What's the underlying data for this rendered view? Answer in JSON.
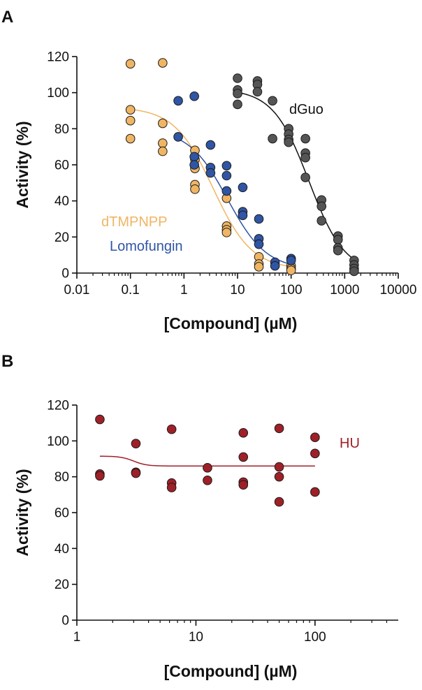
{
  "chart_data": [
    {
      "panel": "A",
      "type": "scatter",
      "xscale": "log",
      "xlim": [
        0.01,
        10000
      ],
      "ylim": [
        0,
        120
      ],
      "xticks": [
        "0.01",
        "0.1",
        "1",
        "10",
        "100",
        "1000",
        "10000"
      ],
      "xtick_values": [
        0.01,
        0.1,
        1,
        10,
        100,
        1000,
        10000
      ],
      "yticks": [
        "0",
        "20",
        "40",
        "60",
        "80",
        "100",
        "120"
      ],
      "ytick_values": [
        0,
        20,
        40,
        60,
        80,
        100,
        120
      ],
      "xlabel": "[Compound] (µM)",
      "ylabel": "Activity (%)",
      "series": [
        {
          "name": "dTMPNPP",
          "color": "#F0B563",
          "line_color": "#F0B563",
          "points": [
            [
              0.1,
              116
            ],
            [
              0.1,
              90.5
            ],
            [
              0.1,
              84.5
            ],
            [
              0.1,
              74.5
            ],
            [
              0.4,
              116.5
            ],
            [
              0.4,
              83
            ],
            [
              0.4,
              72
            ],
            [
              0.4,
              67.5
            ],
            [
              1.6,
              68
            ],
            [
              1.6,
              63
            ],
            [
              1.6,
              58
            ],
            [
              1.6,
              49
            ],
            [
              1.6,
              46.5
            ],
            [
              6.25,
              41.5
            ],
            [
              6.25,
              26
            ],
            [
              6.25,
              24
            ],
            [
              6.25,
              22.5
            ],
            [
              25,
              9
            ],
            [
              25,
              5
            ],
            [
              25,
              3.5
            ],
            [
              100,
              4
            ],
            [
              100,
              2.5
            ],
            [
              100,
              1.5
            ]
          ],
          "fit": {
            "top": 92,
            "bottom": 2,
            "ic50": 3.5,
            "hill": 1.2,
            "xmin": 0.1,
            "xmax": 100
          }
        },
        {
          "name": "Lomofungin",
          "color": "#2F55A4",
          "line_color": "#2F55A4",
          "points": [
            [
              0.78,
              95.5
            ],
            [
              0.78,
              75.5
            ],
            [
              1.56,
              98
            ],
            [
              1.56,
              64.5
            ],
            [
              1.56,
              60
            ],
            [
              3.13,
              71
            ],
            [
              3.13,
              58.5
            ],
            [
              3.13,
              55.5
            ],
            [
              6.25,
              59.5
            ],
            [
              6.25,
              54
            ],
            [
              6.25,
              45.5
            ],
            [
              12.5,
              47.5
            ],
            [
              12.5,
              34
            ],
            [
              12.5,
              32
            ],
            [
              25,
              30
            ],
            [
              25,
              19
            ],
            [
              25,
              16
            ],
            [
              50,
              6
            ],
            [
              50,
              4
            ],
            [
              100,
              8
            ],
            [
              100,
              7
            ]
          ],
          "fit": {
            "top": 80,
            "bottom": 2,
            "ic50": 6.5,
            "hill": 1.2,
            "xmin": 0.78,
            "xmax": 100
          }
        },
        {
          "name": "dGuo",
          "color": "#555555",
          "line_color": "#111111",
          "points": [
            [
              10,
              108
            ],
            [
              10,
              101.5
            ],
            [
              10,
              99.5
            ],
            [
              10,
              93.5
            ],
            [
              23.5,
              106.5
            ],
            [
              23.5,
              104.5
            ],
            [
              23.5,
              100.5
            ],
            [
              45,
              95.5
            ],
            [
              45,
              74.5
            ],
            [
              90,
              80
            ],
            [
              90,
              77
            ],
            [
              90,
              74
            ],
            [
              90,
              72.5
            ],
            [
              185,
              74.5
            ],
            [
              185,
              66.5
            ],
            [
              185,
              64
            ],
            [
              185,
              53
            ],
            [
              370,
              40.5
            ],
            [
              370,
              37
            ],
            [
              370,
              29
            ],
            [
              750,
              20.5
            ],
            [
              750,
              18.5
            ],
            [
              750,
              14
            ],
            [
              750,
              12.5
            ],
            [
              1500,
              7
            ],
            [
              1500,
              4.5
            ],
            [
              1500,
              2.5
            ],
            [
              1500,
              1
            ]
          ],
          "fit": {
            "top": 102,
            "bottom": 0,
            "ic50": 215,
            "hill": 1.3,
            "xmin": 10,
            "xmax": 1500
          }
        }
      ]
    },
    {
      "panel": "B",
      "type": "scatter",
      "xscale": "log",
      "xlim": [
        1,
        500
      ],
      "ylim": [
        0,
        120
      ],
      "xticks": [
        "1",
        "10",
        "100"
      ],
      "xtick_values": [
        1,
        10,
        100
      ],
      "yticks": [
        "0",
        "20",
        "40",
        "60",
        "80",
        "100",
        "120"
      ],
      "ytick_values": [
        0,
        20,
        40,
        60,
        80,
        100,
        120
      ],
      "xlabel": "[Compound] (µM)",
      "ylabel": "Activity (%)",
      "series": [
        {
          "name": "HU",
          "color": "#A02028",
          "line_color": "#A02028",
          "points": [
            [
              1.56,
              112
            ],
            [
              1.56,
              81.5
            ],
            [
              1.56,
              80.5
            ],
            [
              3.13,
              98.5
            ],
            [
              3.13,
              82.5
            ],
            [
              3.13,
              82
            ],
            [
              6.25,
              106.5
            ],
            [
              6.25,
              76.5
            ],
            [
              6.25,
              74
            ],
            [
              12.5,
              85
            ],
            [
              12.5,
              78
            ],
            [
              25,
              104.5
            ],
            [
              25,
              91
            ],
            [
              25,
              77
            ],
            [
              25,
              75.5
            ],
            [
              50,
              107
            ],
            [
              50,
              85.5
            ],
            [
              50,
              80
            ],
            [
              50,
              66
            ],
            [
              100,
              102
            ],
            [
              100,
              93
            ],
            [
              100,
              71.5
            ]
          ],
          "fit": {
            "top": 91.5,
            "bottom": 86,
            "ic50": 3.0,
            "hill": 8,
            "xmin": 1.56,
            "xmax": 100
          }
        }
      ]
    }
  ],
  "panels": {
    "a": "A",
    "b": "B"
  }
}
